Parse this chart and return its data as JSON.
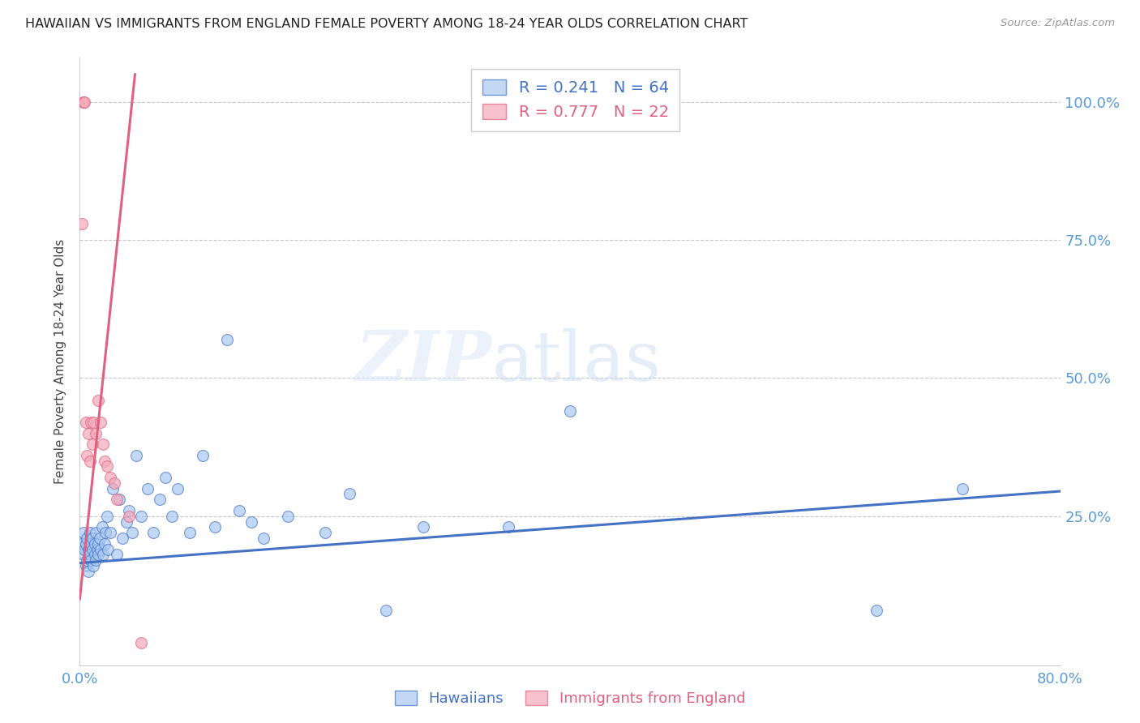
{
  "title": "HAWAIIAN VS IMMIGRANTS FROM ENGLAND FEMALE POVERTY AMONG 18-24 YEAR OLDS CORRELATION CHART",
  "source": "Source: ZipAtlas.com",
  "ylabel": "Female Poverty Among 18-24 Year Olds",
  "xlim": [
    0.0,
    0.8
  ],
  "ylim": [
    -0.02,
    1.08
  ],
  "xticks": [
    0.0,
    0.1,
    0.2,
    0.3,
    0.4,
    0.5,
    0.6,
    0.7,
    0.8
  ],
  "xticklabels": [
    "0.0%",
    "",
    "",
    "",
    "",
    "",
    "",
    "",
    "80.0%"
  ],
  "ytick_positions": [
    0.0,
    0.25,
    0.5,
    0.75,
    1.0
  ],
  "ytick_labels_right": [
    "",
    "25.0%",
    "50.0%",
    "75.0%",
    "100.0%"
  ],
  "grid_color": "#c8c8c8",
  "background_color": "#ffffff",
  "blue_color": "#a8c8f0",
  "pink_color": "#f4a8b8",
  "line_blue": "#4472c4",
  "line_pink": "#e06080",
  "legend_R_blue": "0.241",
  "legend_N_blue": "64",
  "legend_R_pink": "0.777",
  "legend_N_pink": "22",
  "label_blue": "Hawaiians",
  "label_pink": "Immigrants from England",
  "watermark_zip": "ZIP",
  "watermark_atlas": "atlas",
  "hawaiians_x": [
    0.002,
    0.003,
    0.003,
    0.004,
    0.005,
    0.005,
    0.006,
    0.006,
    0.007,
    0.007,
    0.008,
    0.008,
    0.009,
    0.009,
    0.01,
    0.01,
    0.011,
    0.012,
    0.012,
    0.013,
    0.013,
    0.014,
    0.015,
    0.015,
    0.016,
    0.017,
    0.018,
    0.019,
    0.02,
    0.021,
    0.022,
    0.023,
    0.025,
    0.027,
    0.03,
    0.032,
    0.035,
    0.038,
    0.04,
    0.043,
    0.046,
    0.05,
    0.055,
    0.06,
    0.065,
    0.07,
    0.075,
    0.08,
    0.09,
    0.1,
    0.11,
    0.12,
    0.13,
    0.14,
    0.15,
    0.17,
    0.2,
    0.22,
    0.25,
    0.28,
    0.35,
    0.4,
    0.65,
    0.72
  ],
  "hawaiians_y": [
    0.2,
    0.18,
    0.22,
    0.19,
    0.16,
    0.2,
    0.17,
    0.21,
    0.15,
    0.19,
    0.18,
    0.22,
    0.2,
    0.17,
    0.19,
    0.21,
    0.16,
    0.18,
    0.2,
    0.17,
    0.22,
    0.19,
    0.2,
    0.18,
    0.21,
    0.19,
    0.23,
    0.18,
    0.2,
    0.22,
    0.25,
    0.19,
    0.22,
    0.3,
    0.18,
    0.28,
    0.21,
    0.24,
    0.26,
    0.22,
    0.36,
    0.25,
    0.3,
    0.22,
    0.28,
    0.32,
    0.25,
    0.3,
    0.22,
    0.36,
    0.23,
    0.57,
    0.26,
    0.24,
    0.21,
    0.25,
    0.22,
    0.29,
    0.08,
    0.23,
    0.23,
    0.44,
    0.08,
    0.3
  ],
  "england_x": [
    0.002,
    0.003,
    0.003,
    0.004,
    0.005,
    0.006,
    0.007,
    0.008,
    0.009,
    0.01,
    0.011,
    0.013,
    0.015,
    0.017,
    0.019,
    0.02,
    0.022,
    0.025,
    0.028,
    0.03,
    0.04,
    0.05
  ],
  "england_y": [
    0.78,
    1.0,
    1.0,
    1.0,
    0.42,
    0.36,
    0.4,
    0.35,
    0.42,
    0.38,
    0.42,
    0.4,
    0.46,
    0.42,
    0.38,
    0.35,
    0.34,
    0.32,
    0.31,
    0.28,
    0.25,
    0.02
  ],
  "blue_trendline_x": [
    0.0,
    0.8
  ],
  "blue_trendline_y": [
    0.165,
    0.295
  ],
  "pink_trendline_x": [
    0.0,
    0.045
  ],
  "pink_trendline_y": [
    0.1,
    1.05
  ]
}
